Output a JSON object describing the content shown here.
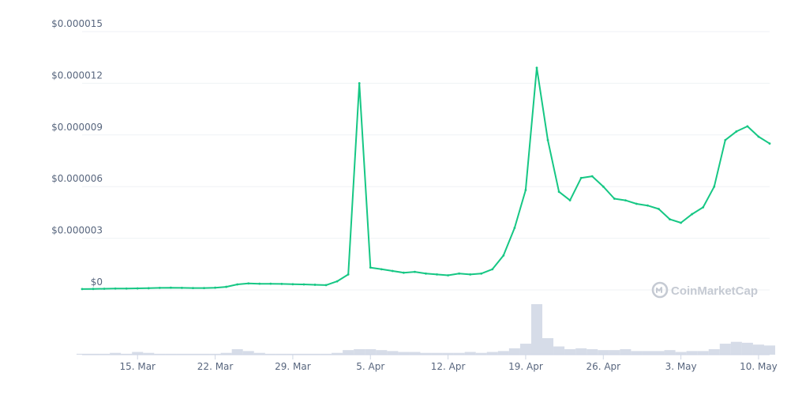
{
  "chart_data": {
    "type": "line",
    "title": "",
    "xlabel": "",
    "ylabel": "",
    "y_ticks": [
      "$0",
      "$0.000003",
      "$0.000006",
      "$0.000009",
      "$0.000012",
      "$0.000015"
    ],
    "ylim": [
      0,
      1.5e-05
    ],
    "x_ticks": [
      "15. Mar",
      "22. Mar",
      "29. Mar",
      "5. Apr",
      "12. Apr",
      "19. Apr",
      "26. Apr",
      "3. May",
      "10. May"
    ],
    "grid": true,
    "line_color": "#16c784",
    "volume_color": "#cfd6e4",
    "series": [
      {
        "x": [
          "10. Mar",
          "11. Mar",
          "12. Mar",
          "13. Mar",
          "14. Mar",
          "15. Mar",
          "16. Mar",
          "17. Mar",
          "18. Mar",
          "19. Mar",
          "20. Mar",
          "21. Mar",
          "22. Mar",
          "23. Mar",
          "24. Mar",
          "25. Mar",
          "26. Mar",
          "27. Mar",
          "28. Mar",
          "29. Mar",
          "30. Mar",
          "31. Mar",
          "1. Apr",
          "2. Apr",
          "3. Apr",
          "4. Apr",
          "5. Apr",
          "6. Apr",
          "7. Apr",
          "8. Apr",
          "9. Apr",
          "10. Apr",
          "11. Apr",
          "12. Apr",
          "13. Apr",
          "14. Apr",
          "15. Apr",
          "16. Apr",
          "17. Apr",
          "18. Apr",
          "19. Apr",
          "20. Apr",
          "21. Apr",
          "22. Apr",
          "23. Apr",
          "24. Apr",
          "25. Apr",
          "26. Apr",
          "27. Apr",
          "28. Apr",
          "29. Apr",
          "30. Apr",
          "1. May",
          "2. May",
          "3. May",
          "4. May",
          "5. May",
          "6. May",
          "7. May",
          "8. May",
          "9. May",
          "10. May",
          "11. May"
        ],
        "values": [
          5e-08,
          6e-08,
          7e-08,
          8e-08,
          8e-08,
          9e-08,
          1e-07,
          1.2e-07,
          1.3e-07,
          1.2e-07,
          1.1e-07,
          1.1e-07,
          1.3e-07,
          1.8e-07,
          3.2e-07,
          3.8e-07,
          3.6e-07,
          3.6e-07,
          3.5e-07,
          3.3e-07,
          3.2e-07,
          3e-07,
          2.8e-07,
          5e-07,
          9e-07,
          1.2e-05,
          1.3e-06,
          1.2e-06,
          1.1e-06,
          1e-06,
          1.05e-06,
          9.5e-07,
          9e-07,
          8.5e-07,
          9.5e-07,
          9e-07,
          9.5e-07,
          1.2e-06,
          2e-06,
          3.6e-06,
          5.8e-06,
          1.29e-05,
          8.7e-06,
          5.7e-06,
          5.2e-06,
          6.5e-06,
          6.6e-06,
          6e-06,
          5.3e-06,
          5.2e-06,
          5e-06,
          4.9e-06,
          4.7e-06,
          4.1e-06,
          3.9e-06,
          4.4e-06,
          4.8e-06,
          6e-06,
          8.7e-06,
          9.2e-06,
          9.5e-06,
          8.9e-06,
          8.5e-06
        ]
      }
    ],
    "volume": [
      1,
      1,
      1,
      2,
      1,
      3,
      2,
      1,
      1,
      1,
      1,
      1,
      1,
      2,
      6,
      4,
      2,
      1,
      1,
      1,
      1,
      1,
      1,
      2,
      5,
      6,
      6,
      5,
      4,
      3,
      3,
      2,
      2,
      2,
      2,
      3,
      2,
      3,
      4,
      7,
      12,
      55,
      18,
      9,
      6,
      7,
      6,
      5,
      5,
      6,
      4,
      4,
      4,
      5,
      3,
      4,
      4,
      6,
      12,
      14,
      13,
      11,
      10
    ],
    "watermark": "CoinMarketCap"
  }
}
